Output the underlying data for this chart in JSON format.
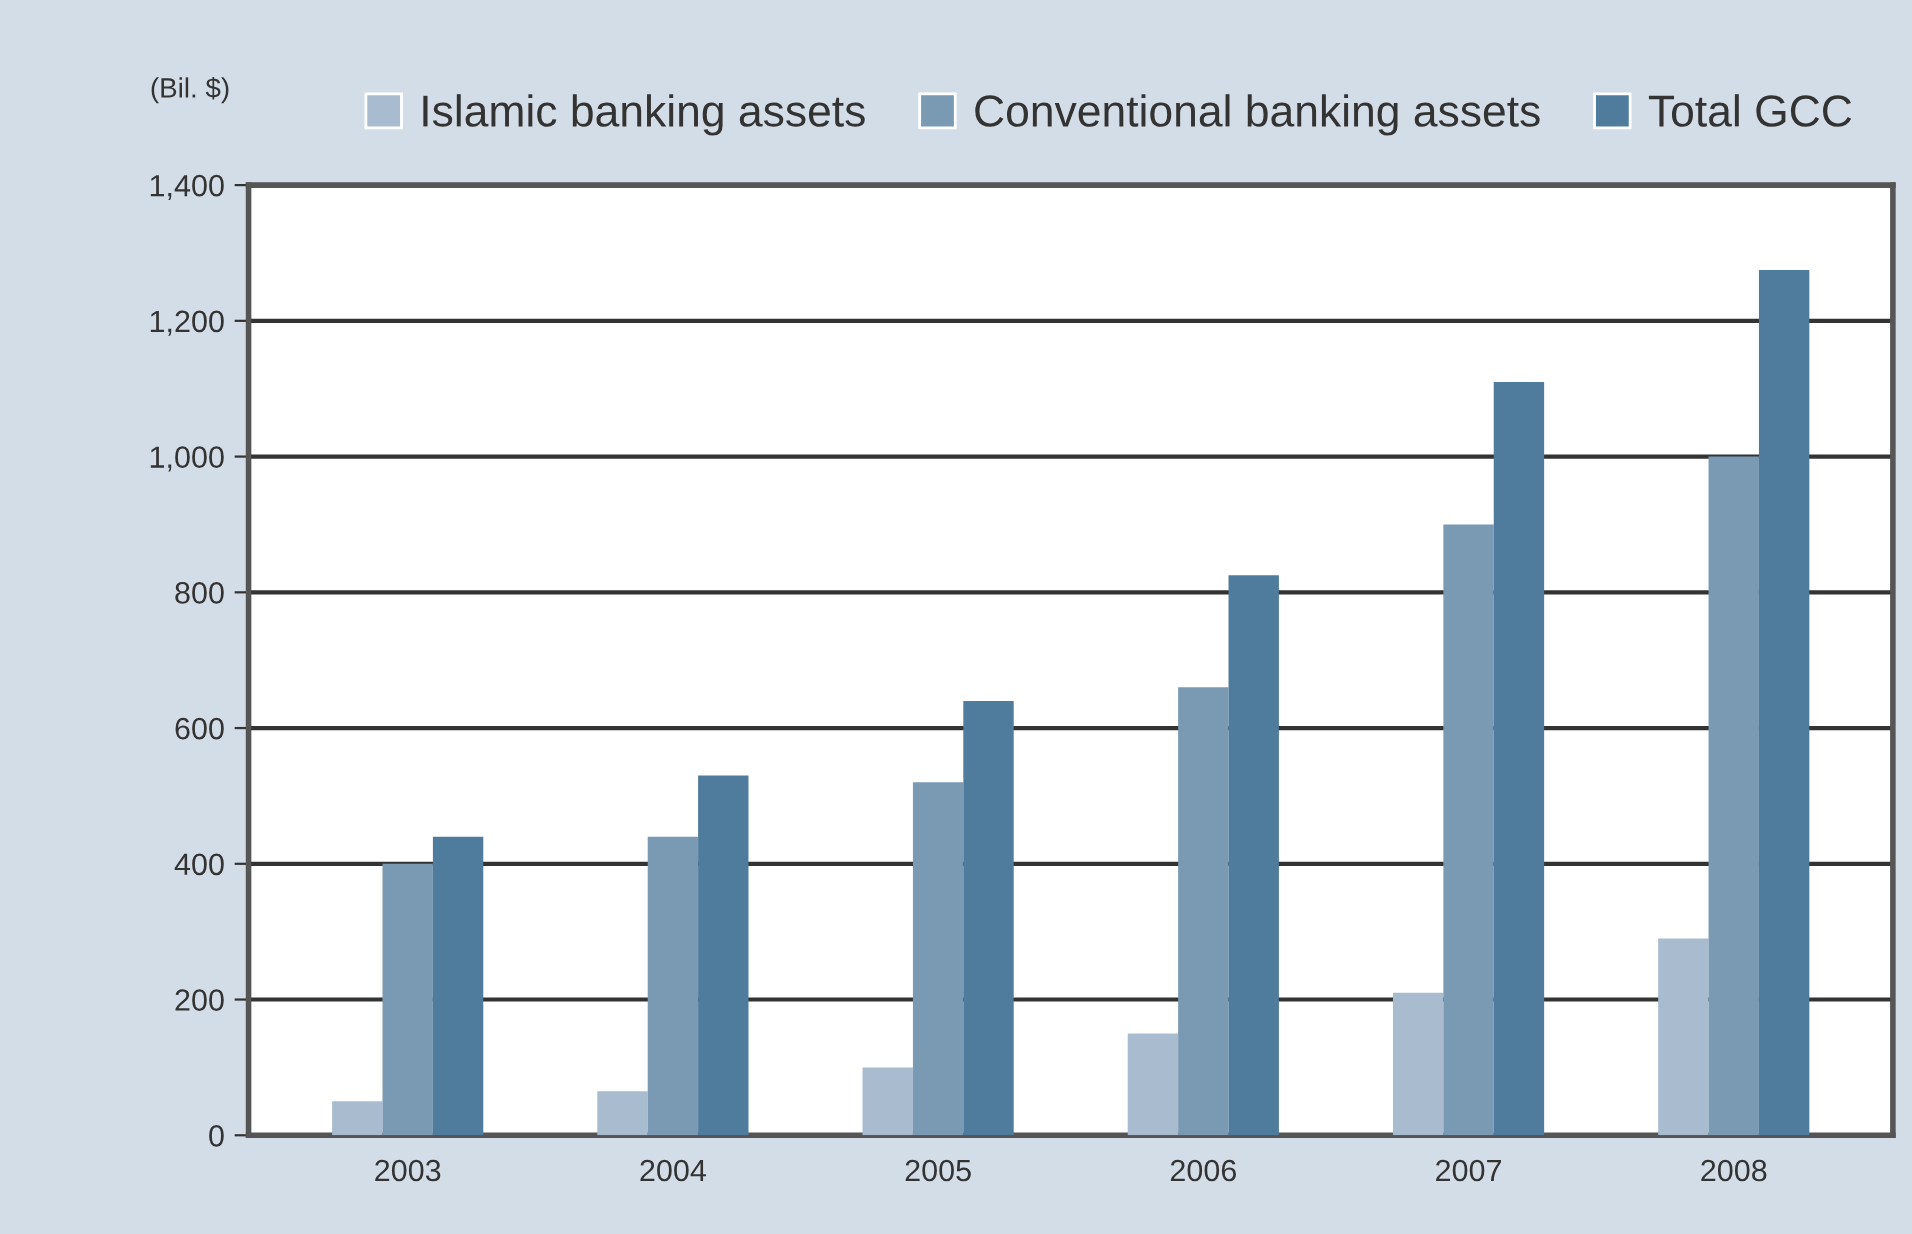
{
  "chart_data": {
    "type": "bar",
    "ylabel": "(Bil. $)",
    "categories": [
      "2003",
      "2004",
      "2005",
      "2006",
      "2007",
      "2008"
    ],
    "series": [
      {
        "name": "Islamic banking assets",
        "color": "#a9bbcf",
        "values": [
          50,
          65,
          100,
          150,
          210,
          290
        ]
      },
      {
        "name": "Conventional banking assets",
        "color": "#7a9ab4",
        "values": [
          400,
          440,
          520,
          660,
          900,
          1000
        ]
      },
      {
        "name": "Total GCC",
        "color": "#4f7c9c",
        "values": [
          440,
          530,
          640,
          825,
          1110,
          1275
        ]
      }
    ],
    "ylim": [
      0,
      1400
    ],
    "yticks": [
      0,
      {
        "value": 200,
        "label": "200"
      },
      {
        "value": 400,
        "label": "400"
      },
      {
        "value": 600,
        "label": "600"
      },
      {
        "value": 800,
        "label": "800"
      },
      {
        "value": 1000,
        "label": "1,000"
      },
      {
        "value": 1200,
        "label": "1,200"
      },
      {
        "value": 1400,
        "label": "1,400"
      }
    ],
    "grid": "y",
    "legend": "top"
  }
}
